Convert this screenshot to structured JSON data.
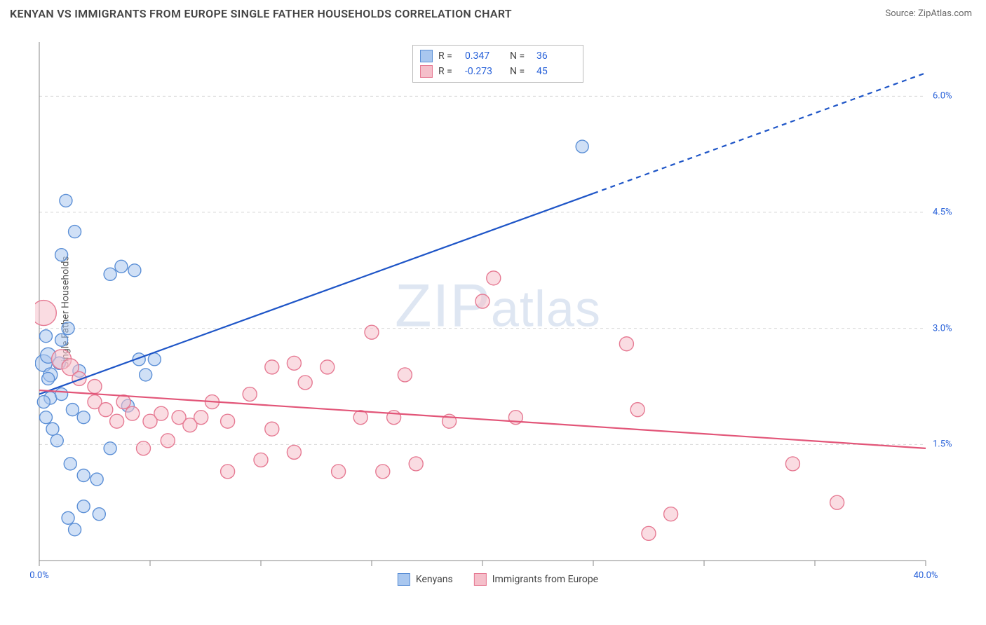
{
  "header": {
    "title": "KENYAN VS IMMIGRANTS FROM EUROPE SINGLE FATHER HOUSEHOLDS CORRELATION CHART",
    "source_prefix": "Source: ",
    "source_name": "ZipAtlas.com"
  },
  "watermark": "ZIPatlas",
  "chart": {
    "type": "scatter",
    "y_label": "Single Father Households",
    "background_color": "#ffffff",
    "grid_color": "#d8d8d8",
    "axis_color": "#888888",
    "tick_color": "#888888",
    "label_color": "#2962d9",
    "xlim": [
      0,
      40
    ],
    "ylim": [
      0,
      6.7
    ],
    "x_ticks": [
      0,
      5,
      10,
      15,
      20,
      25,
      30,
      35,
      40
    ],
    "x_tick_labels": {
      "0": "0.0%",
      "40": "40.0%"
    },
    "y_gridlines": [
      1.5,
      3.0,
      4.5,
      6.0
    ],
    "y_tick_labels": {
      "1.5": "1.5%",
      "3.0": "3.0%",
      "4.5": "4.5%",
      "6.0": "6.0%"
    },
    "series": [
      {
        "name": "Kenyans",
        "color_fill": "#a9c7ef",
        "color_stroke": "#5b8fd6",
        "fill_opacity": 0.55,
        "marker_r_default": 9,
        "trend": {
          "color": "#1e55c7",
          "width": 2.2,
          "x1": 0,
          "y1": 2.15,
          "x2": 40,
          "y2": 6.3,
          "solid_until_x": 25
        },
        "stats": {
          "R": "0.347",
          "N": "36"
        },
        "points": [
          {
            "x": 0.2,
            "y": 2.55,
            "r": 12
          },
          {
            "x": 0.4,
            "y": 2.65,
            "r": 11
          },
          {
            "x": 0.5,
            "y": 2.4,
            "r": 10
          },
          {
            "x": 0.3,
            "y": 2.9,
            "r": 9
          },
          {
            "x": 1.0,
            "y": 2.85,
            "r": 9
          },
          {
            "x": 1.3,
            "y": 3.0,
            "r": 9
          },
          {
            "x": 1.2,
            "y": 4.65,
            "r": 9
          },
          {
            "x": 1.6,
            "y": 4.25,
            "r": 9
          },
          {
            "x": 1.0,
            "y": 3.95,
            "r": 9
          },
          {
            "x": 3.2,
            "y": 3.7,
            "r": 9
          },
          {
            "x": 3.7,
            "y": 3.8,
            "r": 9
          },
          {
            "x": 4.3,
            "y": 3.75,
            "r": 9
          },
          {
            "x": 0.5,
            "y": 2.1,
            "r": 9
          },
          {
            "x": 1.0,
            "y": 2.15,
            "r": 9
          },
          {
            "x": 1.5,
            "y": 1.95,
            "r": 9
          },
          {
            "x": 2.0,
            "y": 1.85,
            "r": 9
          },
          {
            "x": 0.8,
            "y": 1.55,
            "r": 9
          },
          {
            "x": 1.4,
            "y": 1.25,
            "r": 9
          },
          {
            "x": 2.0,
            "y": 1.1,
            "r": 9
          },
          {
            "x": 2.6,
            "y": 1.05,
            "r": 9
          },
          {
            "x": 2.0,
            "y": 0.7,
            "r": 9
          },
          {
            "x": 2.7,
            "y": 0.6,
            "r": 9
          },
          {
            "x": 3.2,
            "y": 1.45,
            "r": 9
          },
          {
            "x": 1.3,
            "y": 0.55,
            "r": 9
          },
          {
            "x": 1.6,
            "y": 0.4,
            "r": 9
          },
          {
            "x": 4.5,
            "y": 2.6,
            "r": 9
          },
          {
            "x": 4.8,
            "y": 2.4,
            "r": 9
          },
          {
            "x": 5.2,
            "y": 2.6,
            "r": 9
          },
          {
            "x": 4.0,
            "y": 2.0,
            "r": 9
          },
          {
            "x": 0.4,
            "y": 2.35,
            "r": 9
          },
          {
            "x": 0.2,
            "y": 2.05,
            "r": 9
          },
          {
            "x": 0.3,
            "y": 1.85,
            "r": 9
          },
          {
            "x": 0.6,
            "y": 1.7,
            "r": 9
          },
          {
            "x": 24.5,
            "y": 5.35,
            "r": 9
          },
          {
            "x": 0.9,
            "y": 2.55,
            "r": 9
          },
          {
            "x": 1.8,
            "y": 2.45,
            "r": 9
          }
        ]
      },
      {
        "name": "Immigrants from Europe",
        "color_fill": "#f5bfca",
        "color_stroke": "#e67a93",
        "fill_opacity": 0.55,
        "marker_r_default": 10,
        "trend": {
          "color": "#e25578",
          "width": 2.2,
          "x1": 0,
          "y1": 2.2,
          "x2": 40,
          "y2": 1.45,
          "solid_until_x": 40
        },
        "stats": {
          "R": "-0.273",
          "N": "45"
        },
        "points": [
          {
            "x": 0.2,
            "y": 3.2,
            "r": 18
          },
          {
            "x": 1.0,
            "y": 2.6,
            "r": 14
          },
          {
            "x": 1.4,
            "y": 2.5,
            "r": 12
          },
          {
            "x": 1.8,
            "y": 2.35,
            "r": 10
          },
          {
            "x": 2.5,
            "y": 2.25,
            "r": 10
          },
          {
            "x": 2.5,
            "y": 2.05,
            "r": 10
          },
          {
            "x": 3.0,
            "y": 1.95,
            "r": 10
          },
          {
            "x": 3.8,
            "y": 2.05,
            "r": 10
          },
          {
            "x": 3.5,
            "y": 1.8,
            "r": 10
          },
          {
            "x": 4.2,
            "y": 1.9,
            "r": 10
          },
          {
            "x": 4.7,
            "y": 1.45,
            "r": 10
          },
          {
            "x": 5.0,
            "y": 1.8,
            "r": 10
          },
          {
            "x": 5.5,
            "y": 1.9,
            "r": 10
          },
          {
            "x": 5.8,
            "y": 1.55,
            "r": 10
          },
          {
            "x": 6.3,
            "y": 1.85,
            "r": 10
          },
          {
            "x": 6.8,
            "y": 1.75,
            "r": 10
          },
          {
            "x": 7.3,
            "y": 1.85,
            "r": 10
          },
          {
            "x": 7.8,
            "y": 2.05,
            "r": 10
          },
          {
            "x": 8.5,
            "y": 1.8,
            "r": 10
          },
          {
            "x": 8.5,
            "y": 1.15,
            "r": 10
          },
          {
            "x": 9.5,
            "y": 2.15,
            "r": 10
          },
          {
            "x": 10.0,
            "y": 1.3,
            "r": 10
          },
          {
            "x": 10.5,
            "y": 1.7,
            "r": 10
          },
          {
            "x": 10.5,
            "y": 2.5,
            "r": 10
          },
          {
            "x": 11.5,
            "y": 2.55,
            "r": 10
          },
          {
            "x": 12.0,
            "y": 2.3,
            "r": 10
          },
          {
            "x": 11.5,
            "y": 1.4,
            "r": 10
          },
          {
            "x": 13.0,
            "y": 2.5,
            "r": 10
          },
          {
            "x": 13.5,
            "y": 1.15,
            "r": 10
          },
          {
            "x": 14.5,
            "y": 1.85,
            "r": 10
          },
          {
            "x": 15.0,
            "y": 2.95,
            "r": 10
          },
          {
            "x": 15.5,
            "y": 1.15,
            "r": 10
          },
          {
            "x": 16.0,
            "y": 1.85,
            "r": 10
          },
          {
            "x": 16.5,
            "y": 2.4,
            "r": 10
          },
          {
            "x": 17.0,
            "y": 1.25,
            "r": 10
          },
          {
            "x": 18.5,
            "y": 1.8,
            "r": 10
          },
          {
            "x": 20.0,
            "y": 3.35,
            "r": 10
          },
          {
            "x": 20.5,
            "y": 3.65,
            "r": 10
          },
          {
            "x": 21.5,
            "y": 1.85,
            "r": 10
          },
          {
            "x": 26.5,
            "y": 2.8,
            "r": 10
          },
          {
            "x": 27.0,
            "y": 1.95,
            "r": 10
          },
          {
            "x": 27.5,
            "y": 0.35,
            "r": 10
          },
          {
            "x": 28.5,
            "y": 0.6,
            "r": 10
          },
          {
            "x": 34.0,
            "y": 1.25,
            "r": 10
          },
          {
            "x": 36.0,
            "y": 0.75,
            "r": 10
          }
        ]
      }
    ]
  }
}
